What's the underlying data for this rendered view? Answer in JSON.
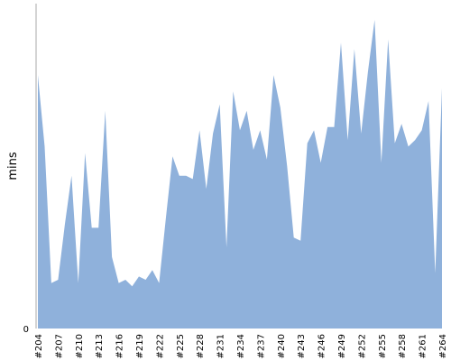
{
  "chart_data": {
    "type": "area",
    "title": "",
    "xlabel": "",
    "ylabel": "mins",
    "ylim": [
      0,
      100
    ],
    "y_ticks": [
      0
    ],
    "grid": false,
    "color": "#8fb1db",
    "x_tick_labels": [
      "#204",
      "#207",
      "#210",
      "#213",
      "#216",
      "#219",
      "#222",
      "#225",
      "#228",
      "#231",
      "#234",
      "#237",
      "#240",
      "#243",
      "#246",
      "#249",
      "#252",
      "#255",
      "#258",
      "#261",
      "#264"
    ],
    "x": [
      204,
      205,
      206,
      207,
      208,
      209,
      210,
      211,
      212,
      213,
      214,
      215,
      216,
      217,
      218,
      219,
      220,
      221,
      222,
      223,
      224,
      225,
      226,
      227,
      228,
      229,
      230,
      231,
      232,
      233,
      234,
      235,
      236,
      237,
      238,
      239,
      240,
      241,
      242,
      243,
      244,
      245,
      246,
      247,
      248,
      249,
      250,
      251,
      252,
      253,
      254,
      255,
      256,
      257,
      258,
      259,
      260,
      261,
      262,
      263,
      264
    ],
    "values": [
      78,
      56,
      14,
      15,
      32,
      47,
      14,
      54,
      31,
      31,
      67,
      22,
      14,
      15,
      13,
      16,
      15,
      18,
      14,
      34,
      53,
      47,
      47,
      46,
      61,
      43,
      60,
      69,
      25,
      73,
      61,
      67,
      55,
      61,
      52,
      78,
      68,
      50,
      28,
      27,
      57,
      61,
      51,
      62,
      62,
      88,
      58,
      86,
      60,
      79,
      95,
      51,
      89,
      57,
      63,
      56,
      58,
      61,
      70,
      17,
      74
    ]
  }
}
